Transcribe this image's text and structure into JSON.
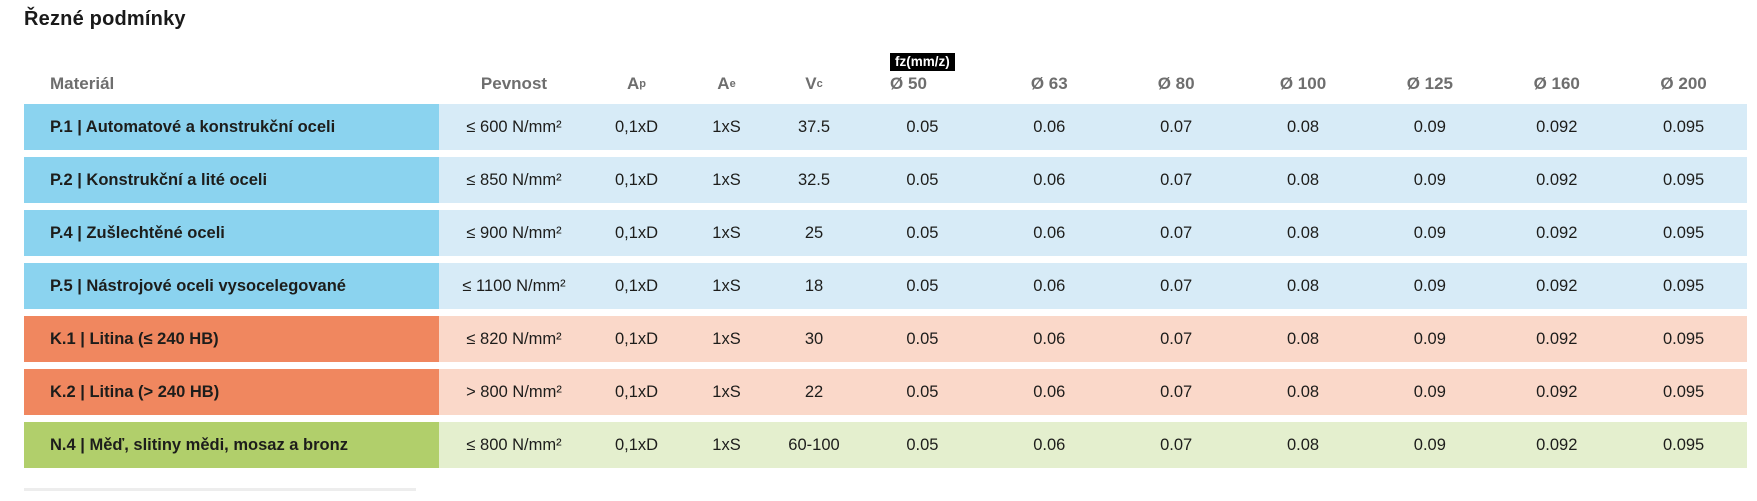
{
  "page": {
    "title": "Řezné podmínky"
  },
  "table": {
    "headers": {
      "material": "Materiál",
      "pevnost": "Pevnost",
      "ap": {
        "base": "A",
        "sub": "p"
      },
      "ae": {
        "base": "A",
        "sub": "e"
      },
      "vc": {
        "base": "V",
        "sub": "c"
      },
      "fz_badge": "fz(mm/z)",
      "diameters": [
        "Ø 50",
        "Ø 63",
        "Ø 80",
        "Ø 100",
        "Ø 125",
        "Ø 160",
        "Ø 200"
      ]
    },
    "groups": {
      "steel": {
        "dark": "#8BD3EF",
        "light": "#D7EBF7"
      },
      "cast_iron": {
        "dark": "#F0875F",
        "light": "#FAD8C9"
      },
      "non_ferrous": {
        "dark": "#B1CF6B",
        "light": "#E4EFCE"
      }
    },
    "rows": [
      {
        "group": "steel",
        "material": "P.1 | Automatové a konstrukční oceli",
        "pevnost": "≤ 600 N/mm²",
        "ap": "0,1xD",
        "ae": "1xS",
        "vc": "37.5",
        "fz": [
          "0.05",
          "0.06",
          "0.07",
          "0.08",
          "0.09",
          "0.092",
          "0.095"
        ]
      },
      {
        "group": "steel",
        "material": "P.2 | Konstrukční a lité oceli",
        "pevnost": "≤ 850 N/mm²",
        "ap": "0,1xD",
        "ae": "1xS",
        "vc": "32.5",
        "fz": [
          "0.05",
          "0.06",
          "0.07",
          "0.08",
          "0.09",
          "0.092",
          "0.095"
        ]
      },
      {
        "group": "steel",
        "material": "P.4 | Zušlechtěné oceli",
        "pevnost": "≤ 900 N/mm²",
        "ap": "0,1xD",
        "ae": "1xS",
        "vc": "25",
        "fz": [
          "0.05",
          "0.06",
          "0.07",
          "0.08",
          "0.09",
          "0.092",
          "0.095"
        ]
      },
      {
        "group": "steel",
        "material": "P.5 | Nástrojové oceli vysocelegované",
        "pevnost": "≤ 1100 N/mm²",
        "ap": "0,1xD",
        "ae": "1xS",
        "vc": "18",
        "fz": [
          "0.05",
          "0.06",
          "0.07",
          "0.08",
          "0.09",
          "0.092",
          "0.095"
        ]
      },
      {
        "group": "cast_iron",
        "material": "K.1 | Litina (≤ 240 HB)",
        "pevnost": "≤ 820 N/mm²",
        "ap": "0,1xD",
        "ae": "1xS",
        "vc": "30",
        "fz": [
          "0.05",
          "0.06",
          "0.07",
          "0.08",
          "0.09",
          "0.092",
          "0.095"
        ]
      },
      {
        "group": "cast_iron",
        "material": "K.2 | Litina (> 240 HB)",
        "pevnost": "> 800 N/mm²",
        "ap": "0,1xD",
        "ae": "1xS",
        "vc": "22",
        "fz": [
          "0.05",
          "0.06",
          "0.07",
          "0.08",
          "0.09",
          "0.092",
          "0.095"
        ]
      },
      {
        "group": "non_ferrous",
        "material": "N.4 | Měď, slitiny mědi, mosaz a bronz",
        "pevnost": "≤ 800 N/mm²",
        "ap": "0,1xD",
        "ae": "1xS",
        "vc": "60-100",
        "fz": [
          "0.05",
          "0.06",
          "0.07",
          "0.08",
          "0.09",
          "0.092",
          "0.095"
        ]
      }
    ]
  }
}
